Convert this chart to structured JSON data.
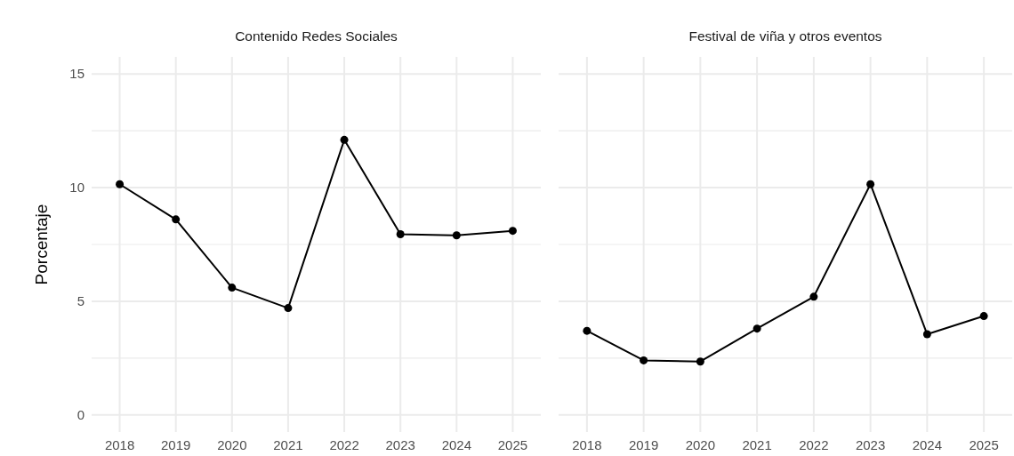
{
  "chart_data": [
    {
      "type": "line",
      "title": "Contenido Redes Sociales",
      "ylabel": "Porcentaje",
      "categories": [
        "2018",
        "2019",
        "2020",
        "2021",
        "2022",
        "2023",
        "2024",
        "2025"
      ],
      "series": [
        {
          "color": "#000000",
          "values": [
            10.15,
            8.6,
            5.6,
            4.7,
            12.1,
            7.95,
            7.9,
            8.1
          ]
        }
      ],
      "ylim": [
        -0.75,
        15.75
      ],
      "yticks": [
        0,
        {
          "value": 2.5,
          "label": null
        },
        5,
        {
          "value": 7.5,
          "label": null
        },
        10,
        {
          "value": 12.5,
          "label": null
        },
        15
      ],
      "grid": true,
      "marker": "circle",
      "line_style": "solid"
    },
    {
      "type": "line",
      "title": "Festival de viña y otros eventos",
      "categories": [
        "2018",
        "2019",
        "2020",
        "2021",
        "2022",
        "2023",
        "2024",
        "2025"
      ],
      "series": [
        {
          "color": "#000000",
          "values": [
            3.7,
            2.4,
            2.35,
            3.8,
            5.2,
            10.15,
            3.55,
            4.35
          ]
        }
      ],
      "ylim": [
        -0.75,
        15.75
      ],
      "yticks": [
        0,
        {
          "value": 2.5,
          "label": null
        },
        5,
        {
          "value": 7.5,
          "label": null
        },
        10,
        {
          "value": 12.5,
          "label": null
        },
        15
      ],
      "grid": true,
      "marker": "circle",
      "line_style": "solid",
      "tick_labels": "x"
    }
  ]
}
